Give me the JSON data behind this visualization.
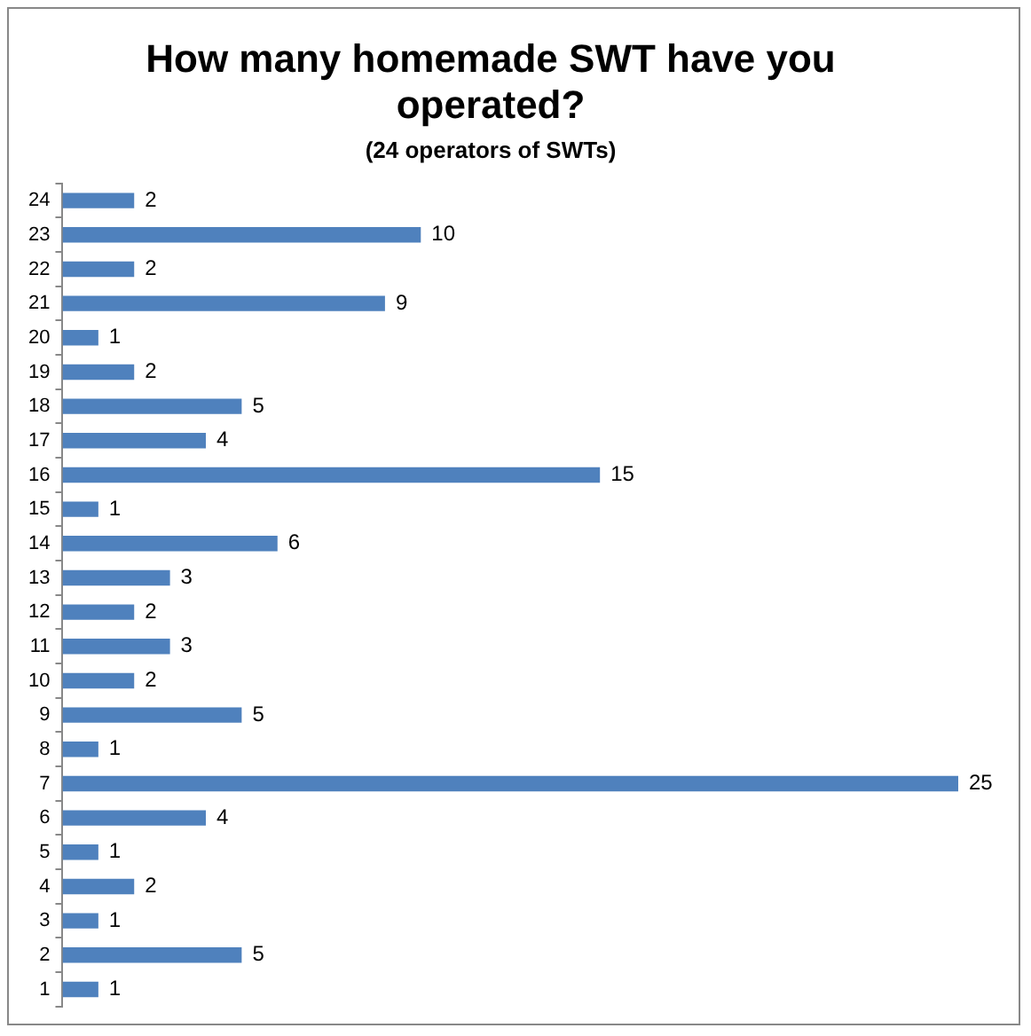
{
  "chart_data": {
    "type": "bar",
    "orientation": "horizontal",
    "title": "How many homemade SWT have you operated?",
    "subtitle": "(24 operators of SWTs)",
    "categories": [
      "24",
      "23",
      "22",
      "21",
      "20",
      "19",
      "18",
      "17",
      "16",
      "15",
      "14",
      "13",
      "12",
      "11",
      "10",
      "9",
      "8",
      "7",
      "6",
      "5",
      "4",
      "3",
      "2",
      "1"
    ],
    "values": [
      2,
      10,
      2,
      9,
      1,
      2,
      5,
      4,
      15,
      1,
      6,
      3,
      2,
      3,
      2,
      5,
      1,
      25,
      4,
      1,
      2,
      1,
      5,
      1
    ],
    "color": "#4f81bd",
    "data_labels": true,
    "legend": false,
    "tick_labels": "y"
  }
}
